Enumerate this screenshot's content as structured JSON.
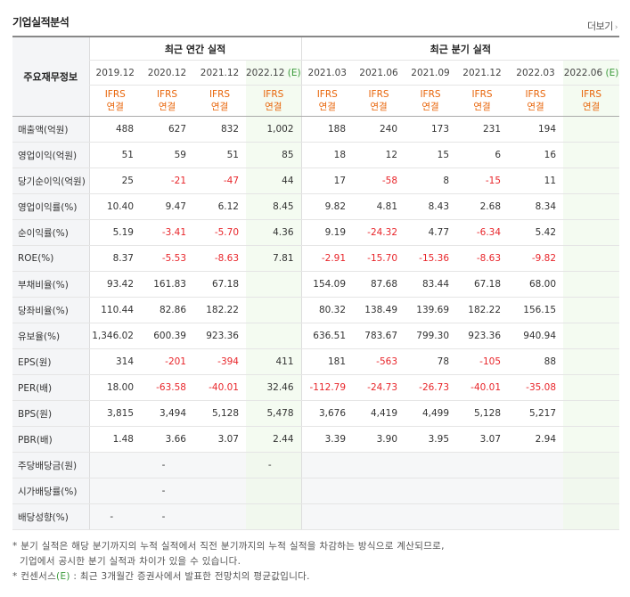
{
  "title": "기업실적분석",
  "more_label": "더보기",
  "more_chevron": "›",
  "header": {
    "row_label": "주요재무정보",
    "annual_label": "최근 연간 실적",
    "quarter_label": "최근 분기 실적",
    "annual_periods": [
      "2019.12",
      "2020.12",
      "2021.12",
      "2022.12"
    ],
    "annual_est_mark": "(E)",
    "quarter_periods": [
      "2021.03",
      "2021.06",
      "2021.09",
      "2021.12",
      "2022.03",
      "2022.06"
    ],
    "quarter_est_mark": "(E)",
    "ifrs_line1": "IFRS",
    "ifrs_line2": "연결"
  },
  "rows": [
    {
      "label": "매출액(억원)",
      "group": 1,
      "values": [
        "488",
        "627",
        "832",
        "1,002",
        "188",
        "240",
        "173",
        "231",
        "194",
        ""
      ]
    },
    {
      "label": "영업이익(억원)",
      "group": 1,
      "values": [
        "51",
        "59",
        "51",
        "85",
        "18",
        "12",
        "15",
        "6",
        "16",
        ""
      ]
    },
    {
      "label": "당기순이익(억원)",
      "group": 1,
      "values": [
        "25",
        "-21",
        "-47",
        "44",
        "17",
        "-58",
        "8",
        "-15",
        "11",
        ""
      ]
    },
    {
      "label": "영업이익률(%)",
      "group": 2,
      "values": [
        "10.40",
        "9.47",
        "6.12",
        "8.45",
        "9.82",
        "4.81",
        "8.43",
        "2.68",
        "8.34",
        ""
      ]
    },
    {
      "label": "순이익률(%)",
      "group": 2,
      "values": [
        "5.19",
        "-3.41",
        "-5.70",
        "4.36",
        "9.19",
        "-24.32",
        "4.77",
        "-6.34",
        "5.42",
        ""
      ]
    },
    {
      "label": "ROE(%)",
      "group": 2,
      "values": [
        "8.37",
        "-5.53",
        "-8.63",
        "7.81",
        "-2.91",
        "-15.70",
        "-15.36",
        "-8.63",
        "-9.82",
        ""
      ]
    },
    {
      "label": "부채비율(%)",
      "group": 3,
      "values": [
        "93.42",
        "161.83",
        "67.18",
        "",
        "154.09",
        "87.68",
        "83.44",
        "67.18",
        "68.00",
        ""
      ]
    },
    {
      "label": "당좌비율(%)",
      "group": 3,
      "values": [
        "110.44",
        "82.86",
        "182.22",
        "",
        "80.32",
        "138.49",
        "139.69",
        "182.22",
        "156.15",
        ""
      ]
    },
    {
      "label": "유보율(%)",
      "group": 3,
      "values": [
        "1,346.02",
        "600.39",
        "923.36",
        "",
        "636.51",
        "783.67",
        "799.30",
        "923.36",
        "940.94",
        ""
      ]
    },
    {
      "label": "EPS(원)",
      "group": 4,
      "values": [
        "314",
        "-201",
        "-394",
        "411",
        "181",
        "-563",
        "78",
        "-105",
        "88",
        ""
      ]
    },
    {
      "label": "PER(배)",
      "group": 4,
      "values": [
        "18.00",
        "-63.58",
        "-40.01",
        "32.46",
        "-112.79",
        "-24.73",
        "-26.73",
        "-40.01",
        "-35.08",
        ""
      ]
    },
    {
      "label": "BPS(원)",
      "group": 4,
      "values": [
        "3,815",
        "3,494",
        "5,128",
        "5,478",
        "3,676",
        "4,419",
        "4,499",
        "5,128",
        "5,217",
        ""
      ]
    },
    {
      "label": "PBR(배)",
      "group": 4,
      "values": [
        "1.48",
        "3.66",
        "3.07",
        "2.44",
        "3.39",
        "3.90",
        "3.95",
        "3.07",
        "2.94",
        ""
      ]
    },
    {
      "label": "주당배당금(원)",
      "group": 5,
      "values": [
        "",
        "-",
        "",
        "-",
        "",
        "",
        "",
        "",
        "",
        ""
      ]
    },
    {
      "label": "시가배당률(%)",
      "group": 5,
      "values": [
        "",
        "-",
        "",
        "",
        "",
        "",
        "",
        "",
        "",
        ""
      ]
    },
    {
      "label": "배당성향(%)",
      "group": 5,
      "values": [
        "-",
        "-",
        "",
        "",
        "",
        "",
        "",
        "",
        "",
        ""
      ]
    }
  ],
  "notes": {
    "line1": "분기 실적은 해당 분기까지의 누적 실적에서 직전 분기까지의 누적 실적을 차감하는 방식으로 계산되므로,",
    "line2": "기업에서 공시한 분기 실적과 차이가 있을 수 있습니다.",
    "line3_prefix": "컨센서스",
    "line3_mark": "(E)",
    "line3_suffix": ": 최근 3개월간 증권사에서 발표한 전망치의 평균값입니다.",
    "bullet": "*"
  },
  "colors": {
    "negative": "#e8252a",
    "ifrs": "#e8650a",
    "estimate_mark": "#3a9a3a",
    "estimate_bg": "#f4fbf1"
  }
}
